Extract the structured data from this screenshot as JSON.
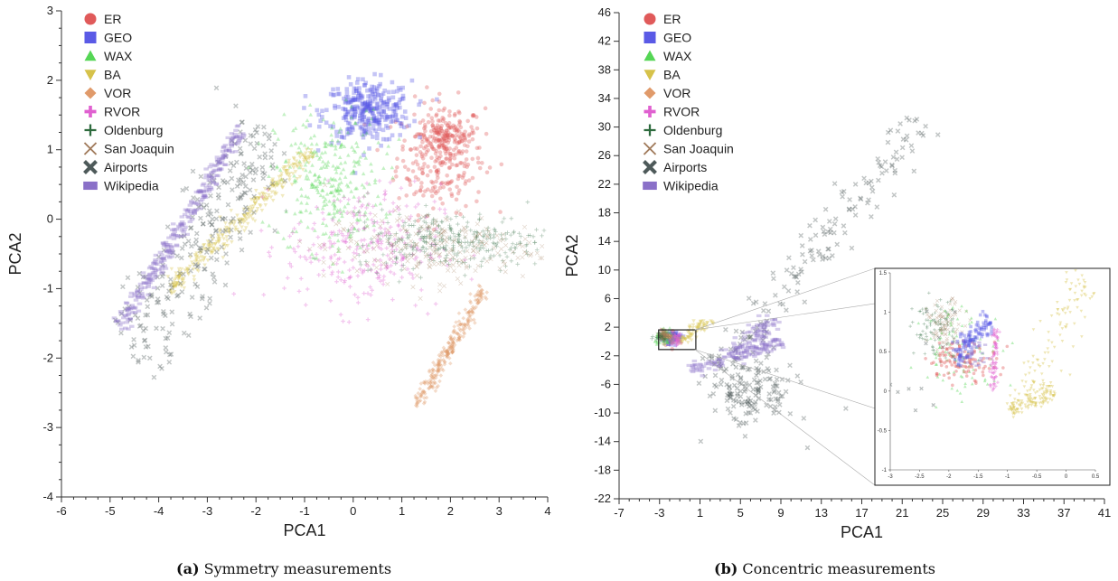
{
  "chart_data": [
    {
      "type": "scatter",
      "panel_label": "(a)",
      "caption": "Symmetry measurements",
      "xlabel": "PCA1",
      "ylabel": "PCA2",
      "xlim": [
        -6,
        4
      ],
      "ylim": [
        -4,
        3
      ],
      "xticks": [
        -6,
        -5,
        -4,
        -3,
        -2,
        -1,
        0,
        1,
        2,
        3,
        4
      ],
      "yticks": [
        -4,
        -3,
        -2,
        -1,
        0,
        1,
        2,
        3
      ],
      "legend_position": "top-left",
      "series": [
        {
          "name": "ER",
          "marker": "circle",
          "color": "#e05a5a",
          "clusters": [
            {
              "type": "blob",
              "center": [
                1.8,
                0.9
              ],
              "spread": [
                0.45,
                0.4
              ],
              "n": 260
            },
            {
              "type": "blob",
              "center": [
                1.9,
                1.2
              ],
              "spread": [
                0.3,
                0.15
              ],
              "n": 120
            }
          ]
        },
        {
          "name": "GEO",
          "marker": "square",
          "color": "#5a5ae6",
          "clusters": [
            {
              "type": "blob",
              "center": [
                0.3,
                1.55
              ],
              "spread": [
                0.45,
                0.22
              ],
              "n": 320
            }
          ]
        },
        {
          "name": "WAX",
          "marker": "triangle-up",
          "color": "#55d655",
          "clusters": [
            {
              "type": "blob",
              "center": [
                -0.5,
                0.55
              ],
              "spread": [
                0.55,
                0.5
              ],
              "n": 300
            }
          ]
        },
        {
          "name": "BA",
          "marker": "triangle-down",
          "color": "#d6c24a",
          "clusters": [
            {
              "type": "line",
              "from": [
                -3.8,
                -1.0
              ],
              "to": [
                -0.8,
                1.0
              ],
              "width": 0.08,
              "n": 320
            }
          ]
        },
        {
          "name": "VOR",
          "marker": "diamond",
          "color": "#e09a6a",
          "clusters": [
            {
              "type": "line",
              "from": [
                1.3,
                -2.7
              ],
              "to": [
                2.7,
                -1.0
              ],
              "width": 0.06,
              "n": 260
            }
          ]
        },
        {
          "name": "RVOR",
          "marker": "plus",
          "color": "#e060d0",
          "clusters": [
            {
              "type": "blob",
              "center": [
                0.2,
                -0.4
              ],
              "spread": [
                0.8,
                0.45
              ],
              "n": 280
            }
          ]
        },
        {
          "name": "Oldenburg",
          "marker": "cross",
          "color": "#2e6b3e",
          "clusters": [
            {
              "type": "blob",
              "center": [
                2.0,
                -0.3
              ],
              "spread": [
                1.0,
                0.2
              ],
              "n": 320
            }
          ]
        },
        {
          "name": "San Joaquin",
          "marker": "x-thin",
          "color": "#a07a5a",
          "clusters": [
            {
              "type": "blob",
              "center": [
                1.6,
                -0.4
              ],
              "spread": [
                1.1,
                0.25
              ],
              "n": 220
            }
          ]
        },
        {
          "name": "Airports",
          "marker": "x-bold",
          "color": "#4e5a5a",
          "clusters": [
            {
              "type": "line",
              "from": [
                -4.5,
                -2.0
              ],
              "to": [
                -1.8,
                1.3
              ],
              "width": 0.35,
              "n": 260
            }
          ]
        },
        {
          "name": "Wikipedia",
          "marker": "rect",
          "color": "#8a70c8",
          "clusters": [
            {
              "type": "line",
              "from": [
                -4.8,
                -1.55
              ],
              "to": [
                -2.3,
                1.3
              ],
              "width": 0.07,
              "n": 300
            }
          ]
        }
      ]
    },
    {
      "type": "scatter",
      "panel_label": "(b)",
      "caption": "Concentric measurements",
      "xlabel": "PCA1",
      "ylabel": "PCA2",
      "xlim": [
        -7,
        41
      ],
      "ylim": [
        -22,
        46
      ],
      "xticks": [
        -7,
        -3,
        1,
        5,
        9,
        13,
        17,
        21,
        25,
        29,
        33,
        37,
        41
      ],
      "yticks": [
        -22,
        -18,
        -14,
        -10,
        -6,
        -2,
        2,
        6,
        10,
        14,
        18,
        22,
        26,
        30,
        34,
        38,
        42,
        46
      ],
      "legend_position": "top-left",
      "series": [
        {
          "name": "ER",
          "marker": "circle",
          "color": "#e05a5a",
          "clusters": [
            {
              "type": "blob",
              "center": [
                -2.0,
                0.5
              ],
              "spread": [
                0.4,
                0.5
              ],
              "n": 60
            }
          ]
        },
        {
          "name": "GEO",
          "marker": "square",
          "color": "#5a5ae6",
          "clusters": [
            {
              "type": "blob",
              "center": [
                -1.6,
                0.6
              ],
              "spread": [
                0.4,
                0.4
              ],
              "n": 60
            }
          ]
        },
        {
          "name": "WAX",
          "marker": "triangle-up",
          "color": "#55d655",
          "clusters": [
            {
              "type": "blob",
              "center": [
                -2.4,
                0.5
              ],
              "spread": [
                0.5,
                0.5
              ],
              "n": 60
            }
          ]
        },
        {
          "name": "BA",
          "marker": "triangle-down",
          "color": "#d6c24a",
          "clusters": [
            {
              "type": "line",
              "from": [
                -1.2,
                0.0
              ],
              "to": [
                2.0,
                3.0
              ],
              "width": 0.4,
              "n": 80
            }
          ]
        },
        {
          "name": "VOR",
          "marker": "diamond",
          "color": "#e09a6a",
          "clusters": [
            {
              "type": "blob",
              "center": [
                -2.2,
                0.7
              ],
              "spread": [
                0.3,
                0.3
              ],
              "n": 30
            }
          ]
        },
        {
          "name": "RVOR",
          "marker": "plus",
          "color": "#e060d0",
          "clusters": [
            {
              "type": "blob",
              "center": [
                -1.4,
                0.3
              ],
              "spread": [
                0.3,
                0.4
              ],
              "n": 30
            }
          ]
        },
        {
          "name": "Oldenburg",
          "marker": "cross",
          "color": "#2e6b3e",
          "clusters": [
            {
              "type": "blob",
              "center": [
                -2.8,
                0.8
              ],
              "spread": [
                0.35,
                0.35
              ],
              "n": 40
            }
          ]
        },
        {
          "name": "San Joaquin",
          "marker": "x-thin",
          "color": "#a07a5a",
          "clusters": [
            {
              "type": "blob",
              "center": [
                -2.6,
                0.9
              ],
              "spread": [
                0.3,
                0.3
              ],
              "n": 30
            }
          ]
        },
        {
          "name": "Airports",
          "marker": "x-bold",
          "color": "#4e5a5a",
          "clusters": [
            {
              "type": "line",
              "from": [
                3.0,
                -4.0
              ],
              "to": [
                23.0,
                31.0
              ],
              "width": 1.2,
              "n": 160
            },
            {
              "type": "blob",
              "center": [
                6.0,
                -7.0
              ],
              "spread": [
                2.2,
                2.6
              ],
              "n": 150
            }
          ]
        },
        {
          "name": "Wikipedia",
          "marker": "rect",
          "color": "#8a70c8",
          "clusters": [
            {
              "type": "line",
              "from": [
                0.0,
                -4.0
              ],
              "to": [
                9.0,
                0.0
              ],
              "width": 0.5,
              "n": 120
            },
            {
              "type": "line",
              "from": [
                4.0,
                -2.0
              ],
              "to": [
                8.5,
                3.0
              ],
              "width": 0.6,
              "n": 80
            }
          ]
        }
      ],
      "inset": {
        "source_region": {
          "x": [
            -3,
            0.5
          ],
          "y": [
            -1,
            1.5
          ]
        },
        "xlim": [
          -3,
          0.5
        ],
        "ylim": [
          -1,
          1.5
        ],
        "xticks": [
          -3,
          -2.5,
          -2,
          -1.5,
          -1,
          -0.5,
          0,
          0.5
        ],
        "yticks": [
          -1,
          -0.5,
          0,
          0.5,
          1,
          1.5
        ],
        "clusters": [
          {
            "series": "Oldenburg",
            "type": "blob",
            "center": [
              -2.25,
              0.8
            ],
            "spread": [
              0.18,
              0.18
            ],
            "n": 90
          },
          {
            "series": "San Joaquin",
            "type": "blob",
            "center": [
              -2.05,
              0.82
            ],
            "spread": [
              0.16,
              0.16
            ],
            "n": 90
          },
          {
            "series": "WAX",
            "type": "blob",
            "center": [
              -1.75,
              0.5
            ],
            "spread": [
              0.35,
              0.3
            ],
            "n": 90
          },
          {
            "series": "ER",
            "type": "blob",
            "center": [
              -1.75,
              0.4
            ],
            "spread": [
              0.3,
              0.12
            ],
            "n": 110
          },
          {
            "series": "GEO",
            "type": "line",
            "from": [
              -1.9,
              0.4
            ],
            "to": [
              -1.3,
              0.9
            ],
            "width": 0.08,
            "n": 120
          },
          {
            "series": "RVOR",
            "type": "line",
            "from": [
              -1.2,
              0.8
            ],
            "to": [
              -1.25,
              0.0
            ],
            "width": 0.03,
            "n": 80
          },
          {
            "series": "BA",
            "type": "line",
            "from": [
              -1.0,
              -0.25
            ],
            "to": [
              -0.2,
              0.0
            ],
            "width": 0.06,
            "n": 120
          },
          {
            "series": "BA",
            "type": "line",
            "from": [
              -0.8,
              -0.2
            ],
            "to": [
              0.4,
              1.4
            ],
            "width": 0.15,
            "n": 110
          },
          {
            "series": "Airports",
            "type": "blob",
            "center": [
              -2.4,
              0.2
            ],
            "spread": [
              0.25,
              0.4
            ],
            "n": 12
          },
          {
            "series": "Wikipedia",
            "type": "blob",
            "center": [
              -1.55,
              0.45
            ],
            "spread": [
              0.12,
              0.1
            ],
            "n": 20
          }
        ]
      }
    }
  ]
}
